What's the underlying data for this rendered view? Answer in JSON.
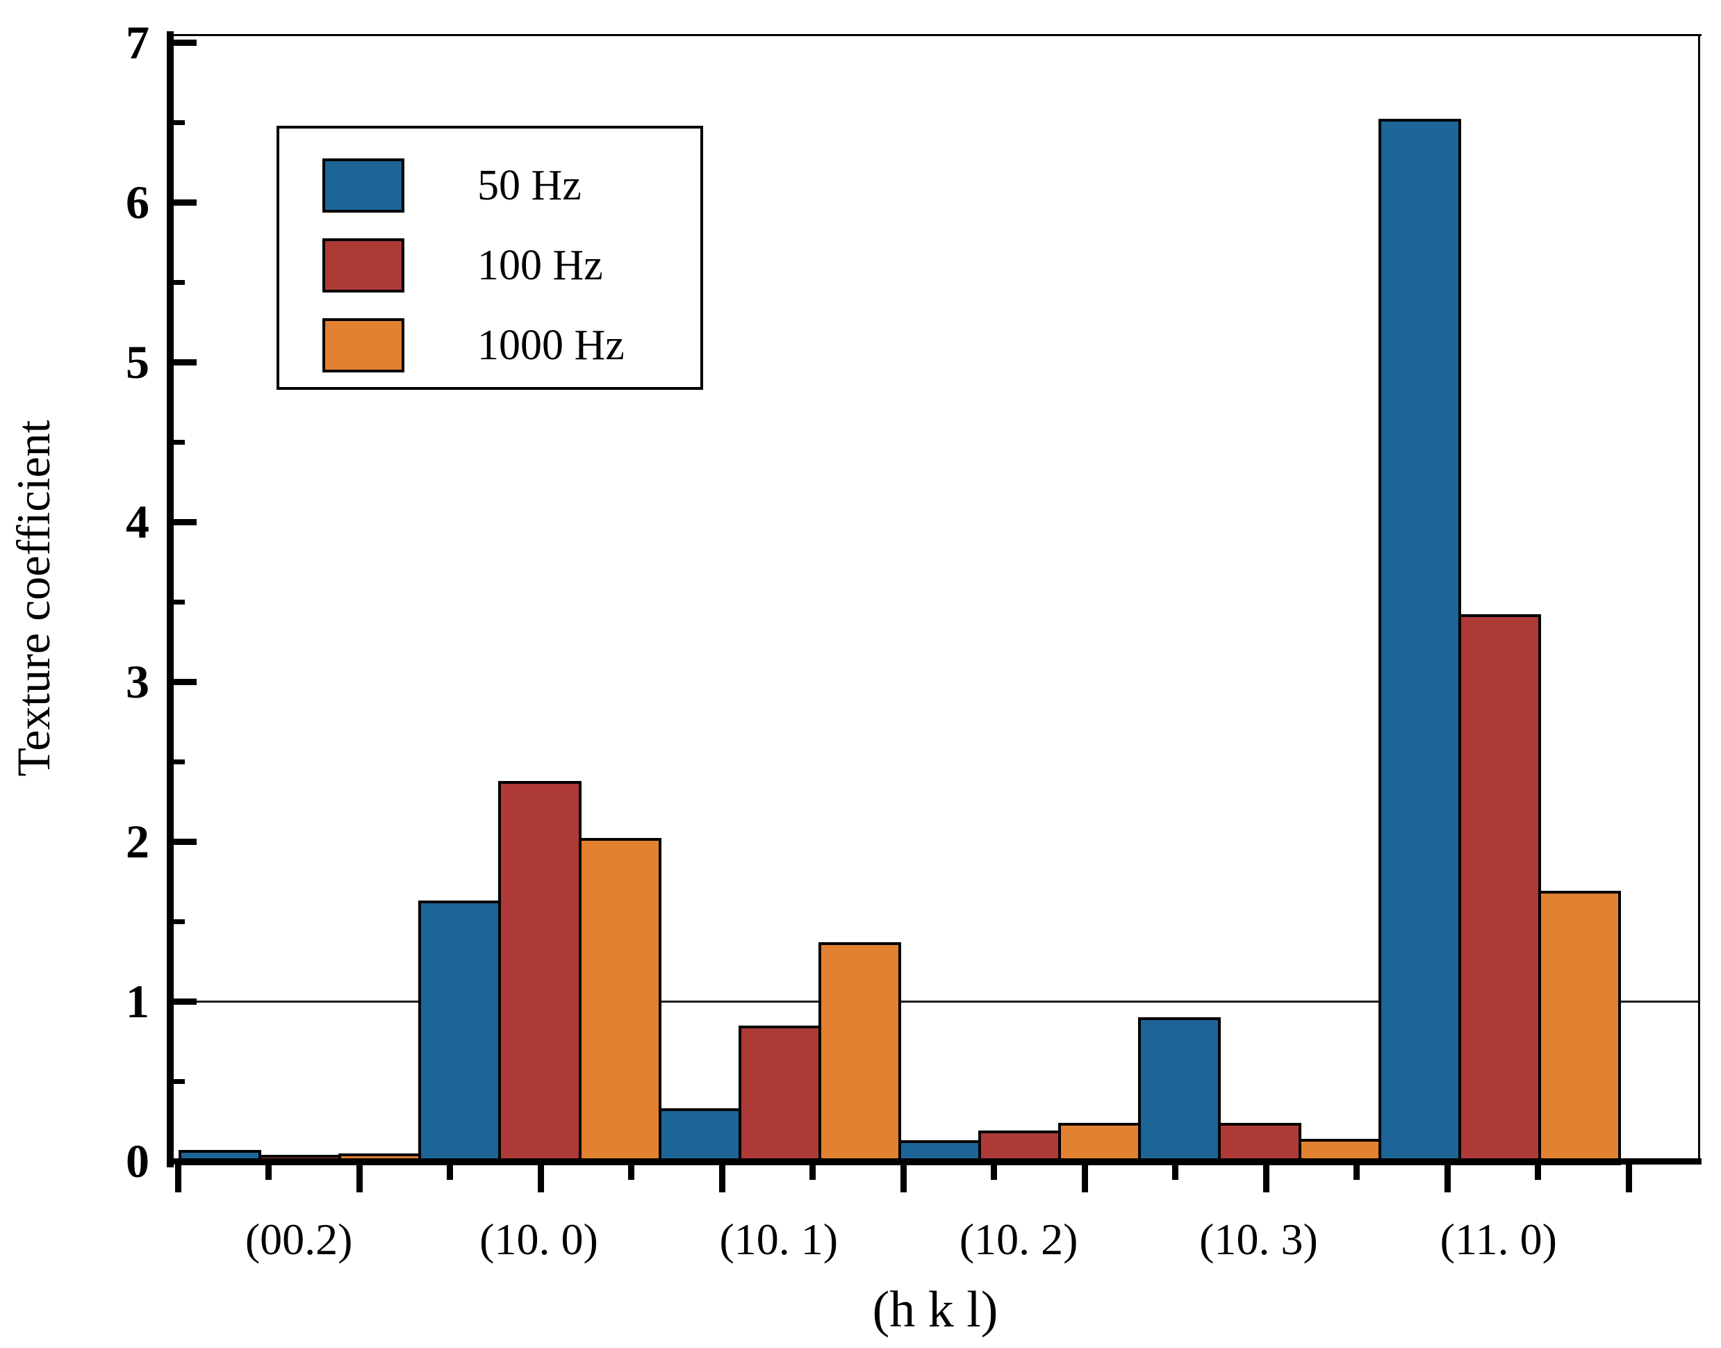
{
  "chart_data": {
    "type": "bar",
    "title": "",
    "xlabel": "(h k l)",
    "ylabel": "Texture coefficient",
    "categories": [
      "(00.2)",
      "(10. 0)",
      "(10. 1)",
      "(10. 2)",
      "(10. 3)",
      "(11. 0)"
    ],
    "series": [
      {
        "name": "50 Hz",
        "color": "#1d6497",
        "values": [
          0.07,
          1.63,
          0.33,
          0.13,
          0.9,
          6.52
        ]
      },
      {
        "name": "100 Hz",
        "color": "#ae3a38",
        "values": [
          0.04,
          2.38,
          0.85,
          0.19,
          0.24,
          3.42
        ]
      },
      {
        "name": "1000 Hz",
        "color": "#e28131",
        "values": [
          0.05,
          2.02,
          1.37,
          0.24,
          0.14,
          1.69
        ]
      }
    ],
    "ylim": [
      0,
      7
    ],
    "yticks": [
      "0",
      "1",
      "2",
      "3",
      "4",
      "5",
      "6",
      "7"
    ],
    "y_minor_tick_interval": 0.5,
    "reference_line_y": 1,
    "grid": false,
    "legend_position": "top-left",
    "bar_outline_color": "#000000",
    "axis_color": "#000000",
    "background_color": "#ffffff"
  }
}
